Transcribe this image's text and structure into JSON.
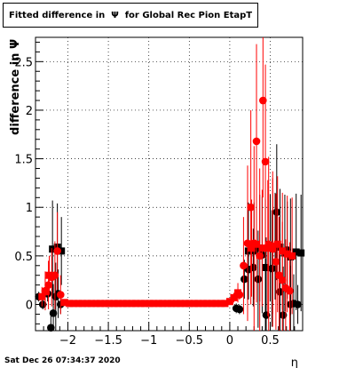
{
  "chart_data": {
    "type": "scatter",
    "title": "Fitted difference in  Ψ  for Global Rec Pion EtapT",
    "xlabel": "η",
    "ylabel": "difference in  Ψ",
    "xlim": [
      -2.4,
      0.9
    ],
    "ylim": [
      -0.27,
      2.75
    ],
    "grid": true,
    "x_ticks": [
      -2,
      -1.5,
      -1,
      -0.5,
      0,
      0.5
    ],
    "x_tick_labels": [
      "−2",
      "−1.5",
      "−1",
      "−0.5",
      "0",
      "0.5"
    ],
    "y_ticks": [
      0,
      0.5,
      1,
      1.5,
      2,
      2.5
    ],
    "y_tick_labels": [
      "0",
      "0.5",
      "1",
      "1.5",
      "2",
      "2.5"
    ],
    "series": [
      {
        "color": "#000000",
        "marker": "circle",
        "points": [
          [
            -2.36,
            0.08,
            0.05
          ],
          [
            -2.31,
            0.0,
            0.05
          ],
          [
            -2.25,
            0.11,
            0.08
          ],
          [
            -2.21,
            -0.24,
            0.15
          ],
          [
            -2.18,
            -0.09,
            0.3
          ],
          [
            -2.15,
            0.08,
            0.35
          ],
          [
            -2.12,
            0.11,
            0.25
          ],
          [
            -2.09,
            0.0,
            0.1
          ],
          [
            0.08,
            -0.04,
            0.05
          ],
          [
            0.12,
            -0.05,
            0.05
          ],
          [
            0.18,
            0.26,
            0.2
          ],
          [
            0.23,
            0.36,
            0.3
          ],
          [
            0.29,
            0.38,
            0.4
          ],
          [
            0.35,
            0.26,
            0.5
          ],
          [
            0.4,
            0.51,
            0.6
          ],
          [
            0.45,
            -0.11,
            0.8
          ],
          [
            0.52,
            0.37,
            0.6
          ],
          [
            0.58,
            0.95,
            0.7
          ],
          [
            0.62,
            0.13,
            0.6
          ],
          [
            0.66,
            -0.11,
            0.5
          ],
          [
            0.71,
            0.56,
            0.5
          ],
          [
            0.75,
            0.0,
            0.4
          ],
          [
            0.79,
            0.01,
            0.3
          ],
          [
            0.84,
            0.0,
            0.2
          ]
        ]
      },
      {
        "color": "#000000",
        "marker": "square",
        "points": [
          [
            -2.19,
            0.57,
            0.5
          ],
          [
            -2.13,
            0.59,
            0.45
          ],
          [
            -2.08,
            0.55,
            0.35
          ],
          [
            0.23,
            0.55,
            0.5
          ],
          [
            0.3,
            0.55,
            0.5
          ],
          [
            0.37,
            0.58,
            0.55
          ],
          [
            0.44,
            0.38,
            0.7
          ],
          [
            0.5,
            0.58,
            0.55
          ],
          [
            0.56,
            0.6,
            0.55
          ],
          [
            0.62,
            0.59,
            0.6
          ],
          [
            0.68,
            0.53,
            0.6
          ],
          [
            0.75,
            0.49,
            0.6
          ],
          [
            0.82,
            0.54,
            0.6
          ],
          [
            0.88,
            0.53,
            0.6
          ]
        ]
      },
      {
        "color": "#ff0000",
        "marker": "circle",
        "points": [
          [
            -2.28,
            0.14,
            0.2
          ],
          [
            -2.24,
            0.2,
            0.25
          ],
          [
            -2.2,
            0.28,
            0.3
          ],
          [
            -2.16,
            0.3,
            0.35
          ],
          [
            -2.13,
            0.55,
            0.4
          ],
          [
            -2.09,
            0.1,
            0.2
          ],
          [
            0.12,
            0.1,
            0.05
          ],
          [
            0.17,
            0.4,
            0.5
          ],
          [
            0.22,
            0.63,
            0.8
          ],
          [
            0.26,
            1.0,
            1.0
          ],
          [
            0.3,
            0.63,
            1.0
          ],
          [
            0.33,
            1.68,
            1.0
          ],
          [
            0.37,
            0.5,
            0.9
          ],
          [
            0.41,
            2.1,
            1.0
          ],
          [
            0.44,
            1.47,
            1.0
          ],
          [
            0.48,
            0.62,
            0.9
          ],
          [
            0.53,
            0.57,
            0.8
          ],
          [
            0.57,
            0.44,
            0.7
          ],
          [
            0.61,
            0.3,
            0.6
          ],
          [
            0.65,
            0.25,
            0.6
          ],
          [
            0.69,
            0.17,
            0.5
          ],
          [
            0.74,
            0.14,
            0.5
          ]
        ]
      },
      {
        "color": "#ff0000",
        "marker": "square",
        "points": [
          [
            -2.32,
            0.08,
            0.1
          ],
          [
            -2.28,
            0.13,
            0.15
          ],
          [
            -2.23,
            0.3,
            0.2
          ],
          [
            -2.04,
            0.02,
            0.02
          ],
          [
            -1.98,
            0.01,
            0.02
          ],
          [
            -1.93,
            0.01,
            0.02
          ],
          [
            -1.87,
            0.01,
            0.02
          ],
          [
            -1.82,
            0.01,
            0.02
          ],
          [
            -1.76,
            0.01,
            0.02
          ],
          [
            -1.71,
            0.01,
            0.02
          ],
          [
            -1.65,
            0.01,
            0.02
          ],
          [
            -1.6,
            0.01,
            0.02
          ],
          [
            -1.54,
            0.01,
            0.02
          ],
          [
            -1.49,
            0.01,
            0.02
          ],
          [
            -1.43,
            0.01,
            0.02
          ],
          [
            -1.38,
            0.01,
            0.02
          ],
          [
            -1.32,
            0.01,
            0.02
          ],
          [
            -1.27,
            0.01,
            0.02
          ],
          [
            -1.21,
            0.01,
            0.02
          ],
          [
            -1.16,
            0.01,
            0.02
          ],
          [
            -1.1,
            0.01,
            0.02
          ],
          [
            -1.05,
            0.01,
            0.02
          ],
          [
            -0.99,
            0.01,
            0.02
          ],
          [
            -0.94,
            0.01,
            0.02
          ],
          [
            -0.88,
            0.01,
            0.02
          ],
          [
            -0.83,
            0.01,
            0.02
          ],
          [
            -0.77,
            0.01,
            0.02
          ],
          [
            -0.72,
            0.01,
            0.02
          ],
          [
            -0.66,
            0.01,
            0.02
          ],
          [
            -0.61,
            0.01,
            0.02
          ],
          [
            -0.55,
            0.01,
            0.02
          ],
          [
            -0.5,
            0.01,
            0.02
          ],
          [
            -0.44,
            0.01,
            0.02
          ],
          [
            -0.39,
            0.01,
            0.02
          ],
          [
            -0.33,
            0.01,
            0.02
          ],
          [
            -0.28,
            0.01,
            0.02
          ],
          [
            -0.22,
            0.01,
            0.02
          ],
          [
            -0.17,
            0.01,
            0.02
          ],
          [
            -0.11,
            0.01,
            0.02
          ],
          [
            -0.06,
            0.01,
            0.02
          ],
          [
            0.0,
            0.03,
            0.03
          ],
          [
            0.05,
            0.07,
            0.05
          ],
          [
            0.1,
            0.12,
            0.1
          ],
          [
            0.27,
            0.58,
            0.5
          ],
          [
            0.33,
            0.62,
            0.6
          ],
          [
            0.4,
            0.58,
            0.6
          ],
          [
            0.47,
            0.58,
            0.7
          ],
          [
            0.53,
            0.6,
            0.7
          ],
          [
            0.59,
            0.62,
            0.7
          ],
          [
            0.65,
            0.55,
            0.6
          ],
          [
            0.71,
            0.52,
            0.6
          ],
          [
            0.77,
            0.5,
            0.6
          ]
        ]
      }
    ]
  },
  "footer": {
    "datetime": "Sat Dec 26 07:34:37 2020"
  }
}
